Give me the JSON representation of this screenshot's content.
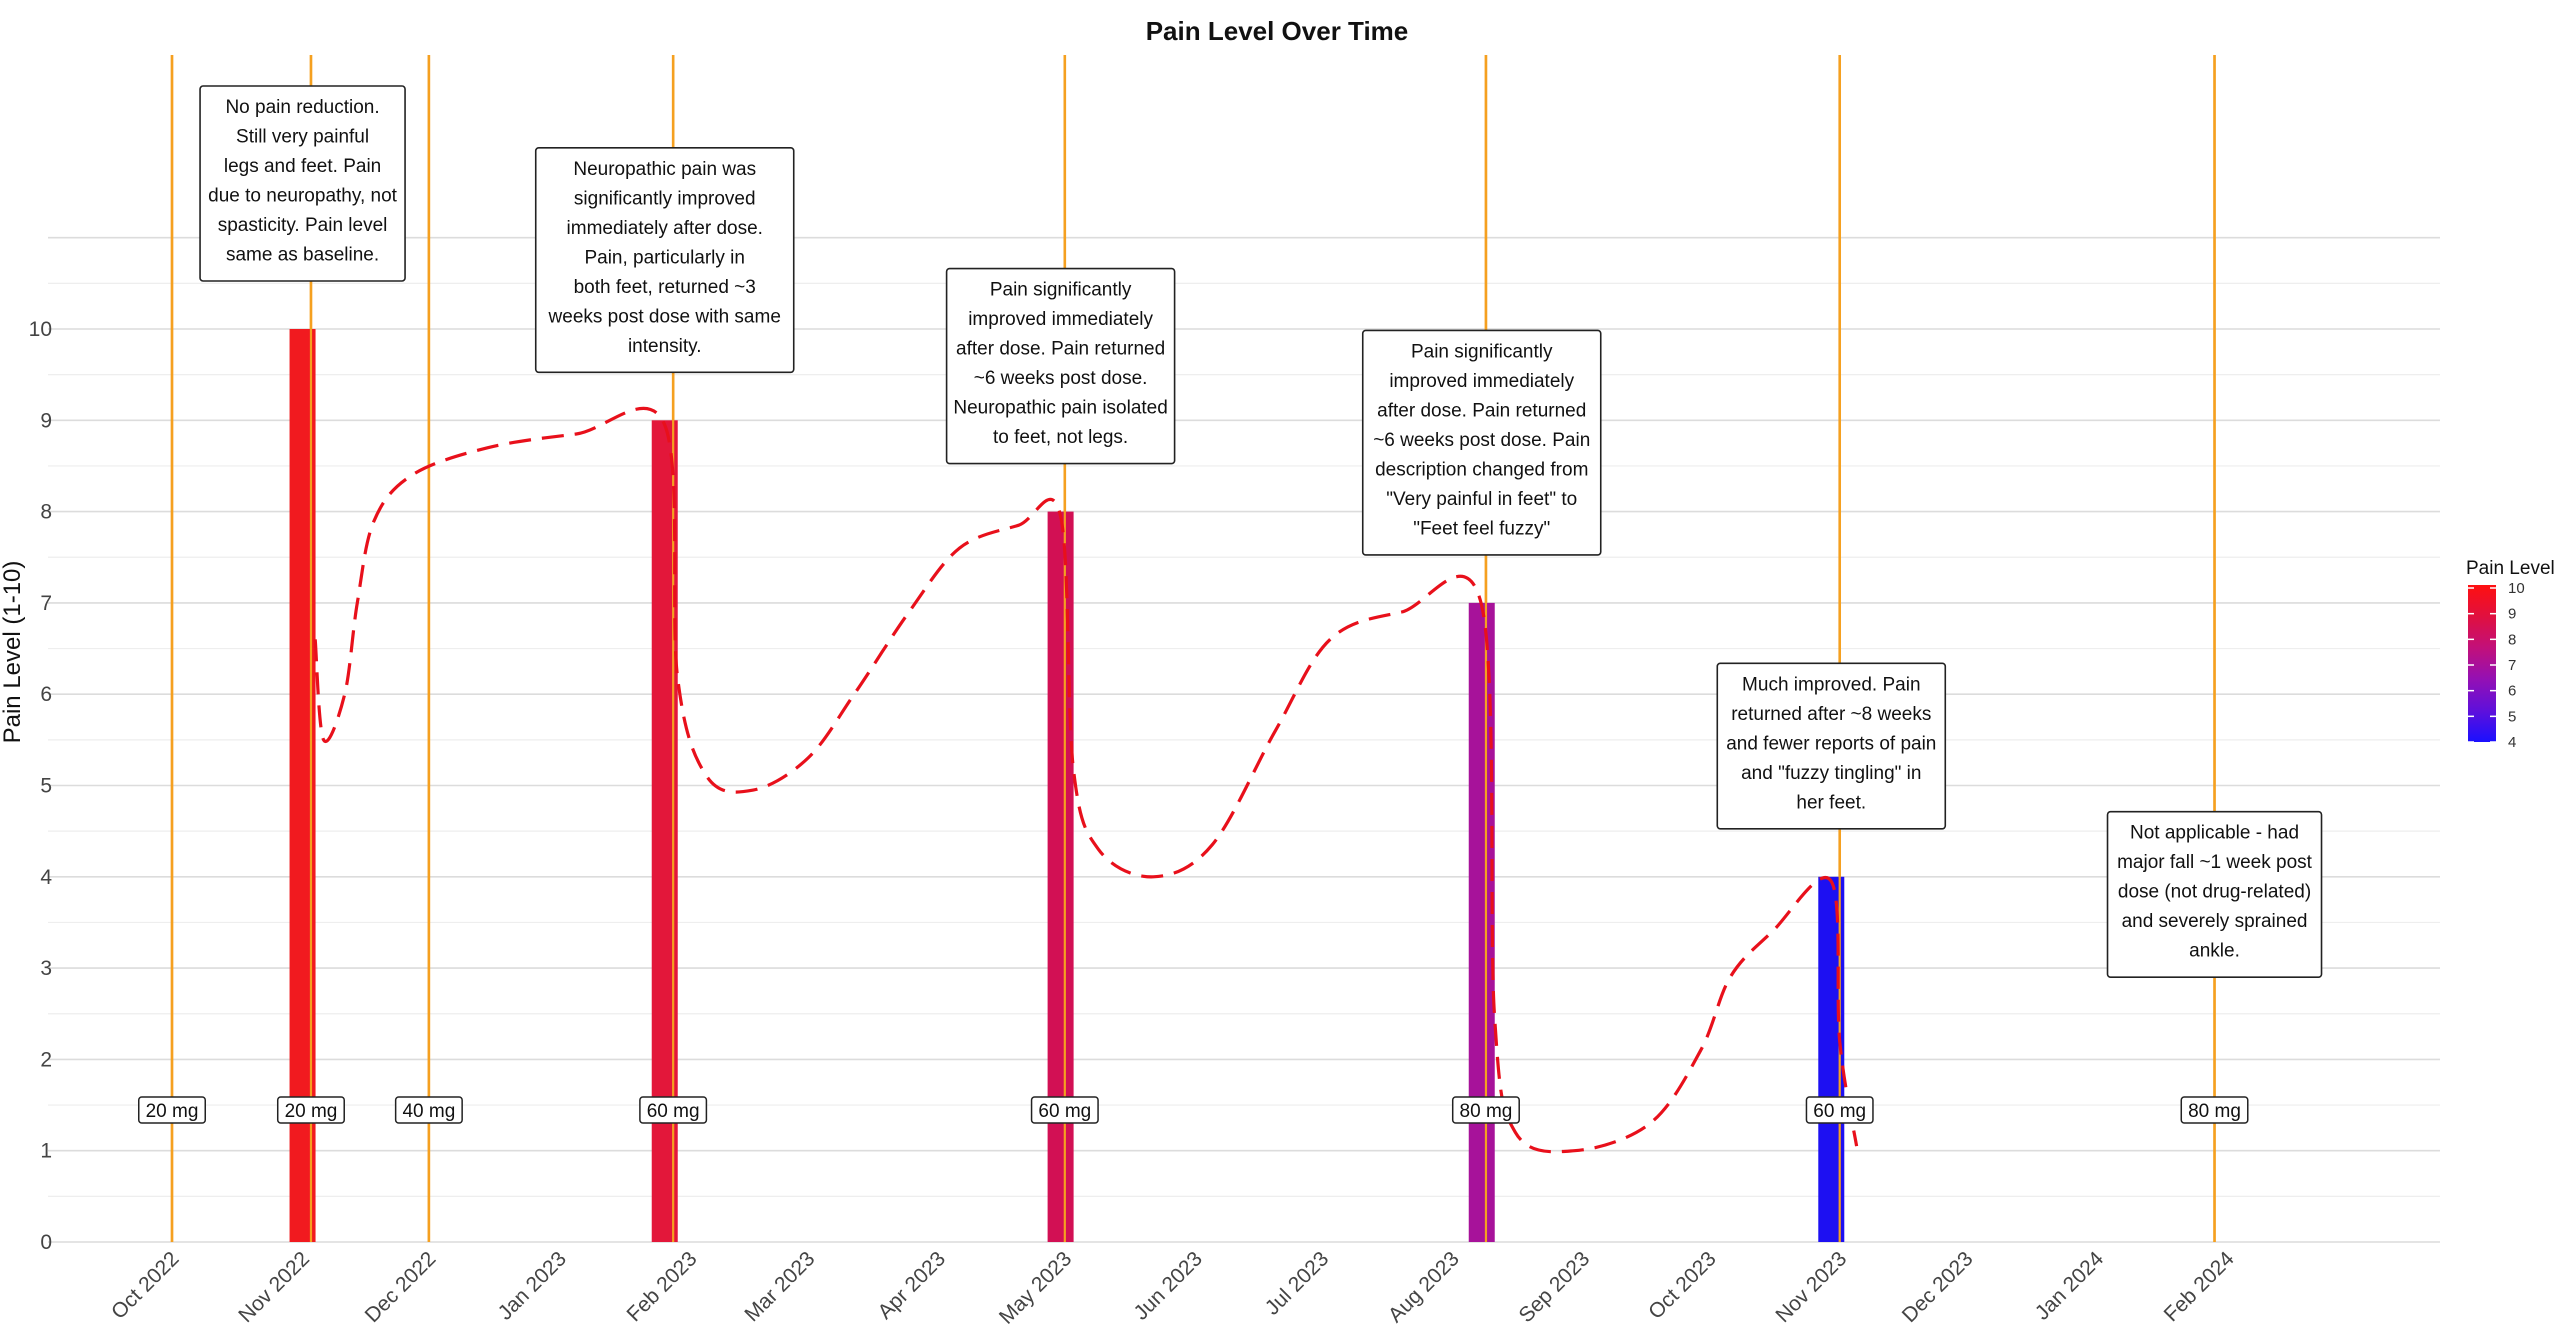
{
  "chart_data": {
    "type": "bar",
    "title": "Pain Level Over Time",
    "ylabel": "Pain Level (1-10)",
    "xlabel": "",
    "ylim": [
      0,
      11
    ],
    "y_ticks": [
      0,
      1,
      2,
      3,
      4,
      5,
      6,
      7,
      8,
      9,
      10
    ],
    "grid": true,
    "x_range": [
      "2022-09-20",
      "2024-03-20"
    ],
    "x_ticks": [
      {
        "date": "2022-10-01",
        "label": "Oct 2022"
      },
      {
        "date": "2022-11-01",
        "label": "Nov 2022"
      },
      {
        "date": "2022-12-01",
        "label": "Dec 2022"
      },
      {
        "date": "2023-01-01",
        "label": "Jan 2023"
      },
      {
        "date": "2023-02-01",
        "label": "Feb 2023"
      },
      {
        "date": "2023-03-01",
        "label": "Mar 2023"
      },
      {
        "date": "2023-04-01",
        "label": "Apr 2023"
      },
      {
        "date": "2023-05-01",
        "label": "May 2023"
      },
      {
        "date": "2023-06-01",
        "label": "Jun 2023"
      },
      {
        "date": "2023-07-01",
        "label": "Jul 2023"
      },
      {
        "date": "2023-08-01",
        "label": "Aug 2023"
      },
      {
        "date": "2023-09-01",
        "label": "Sep 2023"
      },
      {
        "date": "2023-10-01",
        "label": "Oct 2023"
      },
      {
        "date": "2023-11-01",
        "label": "Nov 2023"
      },
      {
        "date": "2023-12-01",
        "label": "Dec 2023"
      },
      {
        "date": "2024-01-01",
        "label": "Jan 2024"
      },
      {
        "date": "2024-02-01",
        "label": "Feb 2024"
      }
    ],
    "bars": [
      {
        "date": "2022-11-01",
        "value": 10,
        "color": "#f11a1f"
      },
      {
        "date": "2023-01-26",
        "value": 9,
        "color": "#e3173a"
      },
      {
        "date": "2023-04-30",
        "value": 8,
        "color": "#d21054"
      },
      {
        "date": "2023-08-08",
        "value": 7,
        "color": "#a7129a"
      },
      {
        "date": "2023-10-30",
        "value": 4,
        "color": "#1d10f2"
      }
    ],
    "dose_lines": [
      {
        "date": "2022-10-01",
        "label": "20 mg"
      },
      {
        "date": "2022-11-03",
        "label": "20 mg"
      },
      {
        "date": "2022-12-01",
        "label": "40 mg"
      },
      {
        "date": "2023-01-28",
        "label": "60 mg"
      },
      {
        "date": "2023-05-01",
        "label": "60 mg"
      },
      {
        "date": "2023-08-09",
        "label": "80 mg"
      },
      {
        "date": "2023-11-01",
        "label": "60 mg"
      },
      {
        "date": "2024-01-29",
        "label": "80 mg"
      }
    ],
    "trend_line": {
      "style": "dashed",
      "color": "#e8101b",
      "points": [
        [
          "2022-11-04",
          6.6
        ],
        [
          "2022-11-06",
          5.5
        ],
        [
          "2022-11-11",
          6.0
        ],
        [
          "2022-11-14",
          7.0
        ],
        [
          "2022-11-18",
          7.9
        ],
        [
          "2022-11-27",
          8.4
        ],
        [
          "2022-12-15",
          8.7
        ],
        [
          "2023-01-05",
          8.85
        ],
        [
          "2023-01-26",
          8.95
        ],
        [
          "2023-01-29",
          6.2
        ],
        [
          "2023-02-05",
          5.1
        ],
        [
          "2023-02-16",
          4.95
        ],
        [
          "2023-03-01",
          5.3
        ],
        [
          "2023-03-12",
          6.0
        ],
        [
          "2023-03-25",
          6.9
        ],
        [
          "2023-04-06",
          7.6
        ],
        [
          "2023-04-20",
          7.85
        ],
        [
          "2023-04-30",
          7.95
        ],
        [
          "2023-05-03",
          5.2
        ],
        [
          "2023-05-09",
          4.3
        ],
        [
          "2023-05-22",
          4.0
        ],
        [
          "2023-06-05",
          4.35
        ],
        [
          "2023-06-20",
          5.6
        ],
        [
          "2023-07-03",
          6.6
        ],
        [
          "2023-07-20",
          6.9
        ],
        [
          "2023-08-08",
          6.97
        ],
        [
          "2023-08-11",
          2.5
        ],
        [
          "2023-08-16",
          1.2
        ],
        [
          "2023-08-30",
          1.0
        ],
        [
          "2023-09-17",
          1.3
        ],
        [
          "2023-09-29",
          2.1
        ],
        [
          "2023-10-06",
          2.9
        ],
        [
          "2023-10-16",
          3.4
        ],
        [
          "2023-10-30",
          3.95
        ],
        [
          "2023-11-01",
          2.2
        ],
        [
          "2023-11-05",
          1.05
        ]
      ]
    },
    "annotations": [
      {
        "date": "2022-11-01",
        "text": "No pain reduction.\nStill very painful\nlegs and feet. Pain\ndue to neuropathy, not\nspasticity. Pain level\nsame as baseline."
      },
      {
        "date": "2023-01-26",
        "text": "Neuropathic pain was\nsignificantly improved\nimmediately after dose.\nPain, particularly in\nboth feet, returned ~3\nweeks post dose with same\nintensity."
      },
      {
        "date": "2023-04-30",
        "text": "Pain significantly\nimproved immediately\nafter dose. Pain returned\n~6 weeks post dose.\nNeuropathic pain isolated\nto feet, not legs."
      },
      {
        "date": "2023-08-08",
        "text": "Pain significantly\nimproved immediately\nafter dose. Pain returned\n~6 weeks post dose. Pain\ndescription changed from\n\"Very painful in feet\" to\n\"Feet feel fuzzy\""
      },
      {
        "date": "2023-10-30",
        "text": "Much improved. Pain\nreturned after ~8 weeks\nand fewer reports of pain\nand \"fuzzy tingling\" in\nher feet."
      },
      {
        "date": "2024-01-29",
        "text": "Not applicable - had\nmajor fall ~1 week post\ndose (not drug-related)\nand severely sprained\nankle."
      }
    ],
    "legend": {
      "title": "Pain Level",
      "position": "right",
      "ticks": [
        10,
        9,
        8,
        7,
        6,
        5,
        4
      ],
      "gradient": [
        "#ff1010",
        "#e0103f",
        "#c2107a",
        "#9410b4",
        "#5f10db",
        "#1a10ff"
      ]
    }
  }
}
